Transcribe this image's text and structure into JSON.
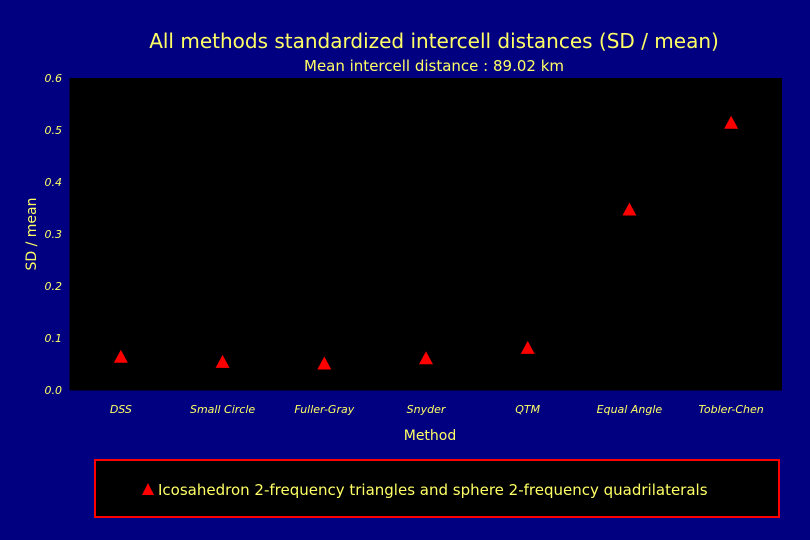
{
  "chart_data": {
    "type": "scatter",
    "title": "All methods standardized intercell distances (SD / mean)",
    "subtitle": "Mean intercell distance : 89.02 km",
    "xlabel": "Method",
    "ylabel": "SD / mean",
    "ylim": [
      0,
      0.6
    ],
    "yticks": [
      "0.0",
      "0.1",
      "0.2",
      "0.3",
      "0.4",
      "0.5",
      "0.6"
    ],
    "categories": [
      "DSS",
      "Small Circle",
      "Fuller-Gray",
      "Snyder",
      "QTM",
      "Equal Angle",
      "Tobler-Chen"
    ],
    "series": [
      {
        "name": "Icosahedron 2-frequency triangles and sphere 2-frequency quadrilaterals",
        "values": [
          0.065,
          0.055,
          0.052,
          0.062,
          0.082,
          0.348,
          0.515
        ],
        "marker": "triangle",
        "color": "#ff0000"
      }
    ],
    "grid": false,
    "legend_position": "bottom",
    "colors": {
      "background": "#000080",
      "plot_area": "#000000",
      "text": "#ffff66",
      "legend_border": "#ff0000"
    }
  }
}
